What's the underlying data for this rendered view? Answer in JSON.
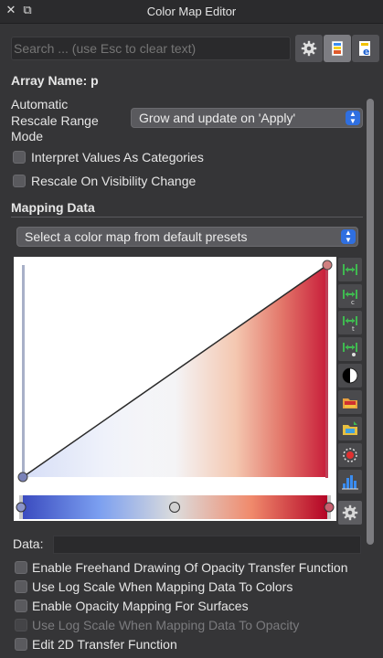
{
  "window": {
    "title": "Color Map Editor",
    "close_glyph": "✕",
    "float_glyph": "⧉"
  },
  "search": {
    "placeholder": "Search ... (use Esc to clear text)"
  },
  "toolbar": {
    "icons": [
      "gear-icon",
      "color-palette-icon",
      "edit-colormap-icon"
    ]
  },
  "array": {
    "label": "Array Name: p"
  },
  "rescale": {
    "label_line1": "Automatic",
    "label_line2": "Rescale Range",
    "label_line3": "Mode",
    "value": "Grow and update on 'Apply'"
  },
  "options_top": {
    "interpret_categories": "Interpret Values As Categories",
    "rescale_visibility": "Rescale On Visibility Change"
  },
  "mapping": {
    "section_title": "Mapping Data",
    "preset_select": "Select a color map from default presets"
  },
  "transfer_function": {
    "opacity_points": [
      {
        "x": 0.0,
        "y": 0.0
      },
      {
        "x": 1.0,
        "y": 1.0
      }
    ],
    "color_points": [
      {
        "x": 0.0,
        "color": "#3b4cc0"
      },
      {
        "x": 0.5,
        "color": "#dddddd"
      },
      {
        "x": 1.0,
        "color": "#b40426"
      }
    ]
  },
  "side_buttons": [
    "rescale-to-data-range-icon",
    "rescale-custom-range-icon",
    "rescale-temporal-range-icon",
    "rescale-visible-range-icon",
    "invert-colormap-icon",
    "save-preset-icon",
    "choose-preset-icon",
    "annotations-icon",
    "histogram-icon",
    "advanced-settings-icon"
  ],
  "data_row": {
    "label": "Data:",
    "value": ""
  },
  "options_bottom": {
    "freehand": "Enable Freehand Drawing Of Opacity Transfer Function",
    "log_colors": "Use Log Scale When Mapping Data To Colors",
    "opacity_surfaces": "Enable Opacity Mapping For Surfaces",
    "log_opacity": "Use Log Scale When Mapping Data To Opacity",
    "edit_2d": "Edit 2D Transfer Function"
  },
  "colors": {
    "panel_bg": "#353537",
    "accent": "#2f6fe0",
    "cool": "#3b4cc0",
    "warm": "#b40426"
  }
}
